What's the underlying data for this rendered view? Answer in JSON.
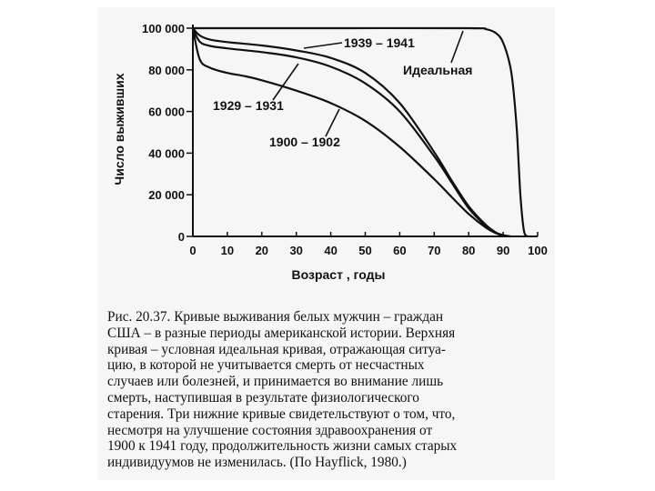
{
  "chart_data": {
    "type": "line",
    "xlabel": "Возраст , годы",
    "ylabel": "Число выживших",
    "xlim": [
      0,
      100
    ],
    "ylim": [
      0,
      100000
    ],
    "x_ticks": [
      "0",
      "10",
      "20",
      "30",
      "40",
      "50",
      "60",
      "70",
      "80",
      "90",
      "100"
    ],
    "y_ticks": [
      "0",
      "20000",
      "40000",
      "60000",
      "80000",
      "100000"
    ],
    "grid": false,
    "legend": "none",
    "series": [
      {
        "name": "1939–1941",
        "x": [
          0,
          2,
          5,
          10,
          20,
          30,
          40,
          50,
          60,
          70,
          75,
          80,
          85,
          88,
          90,
          92
        ],
        "y": [
          100000,
          96500,
          94500,
          93300,
          91700,
          89300,
          85700,
          78500,
          64000,
          40500,
          27000,
          14500,
          5500,
          1800,
          600,
          0
        ]
      },
      {
        "name": "1929–1931",
        "x": [
          0,
          2,
          5,
          10,
          20,
          30,
          40,
          50,
          60,
          70,
          75,
          80,
          85,
          88,
          90,
          92
        ],
        "y": [
          100000,
          93500,
          91500,
          90300,
          88500,
          86000,
          81500,
          73500,
          60000,
          38500,
          26000,
          13500,
          5000,
          1600,
          500,
          0
        ]
      },
      {
        "name": "1900–1902",
        "x": [
          0,
          2,
          5,
          10,
          15,
          20,
          30,
          40,
          50,
          60,
          70,
          75,
          80,
          85,
          88,
          90,
          92
        ],
        "y": [
          100000,
          85000,
          81000,
          78500,
          77000,
          75000,
          70000,
          64000,
          55500,
          43000,
          27500,
          19000,
          10800,
          4200,
          1500,
          500,
          0
        ]
      },
      {
        "name": "Идеальная",
        "x": [
          0,
          40,
          80,
          85,
          88,
          90,
          92,
          93,
          94,
          95,
          96,
          97
        ],
        "y": [
          100000,
          100000,
          100000,
          99500,
          97500,
          93000,
          82000,
          70000,
          50000,
          20000,
          3000,
          0
        ]
      }
    ]
  },
  "caption": {
    "lines": [
      "Рис. 20.37. Кривые выживания белых мужчин – граждан",
      "США – в разные периоды американской истории. Верхняя",
      "кривая – условная идеальная кривая, отражающая ситуа-",
      "цию, в которой не учитывается смерть от несчастных",
      "случаев или болезней, и принимается во внимание лишь",
      "смерть, наступившая в результате физиологического",
      "старения. Три нижние кривые свидетельствуют о том, что,",
      "несмотря на улучшение состояния здравоохранения от",
      "1900 к 1941 году, продолжительность жизни самых старых",
      "индивидуумов не изменилась. (По Hayflick, 1980.)"
    ]
  }
}
